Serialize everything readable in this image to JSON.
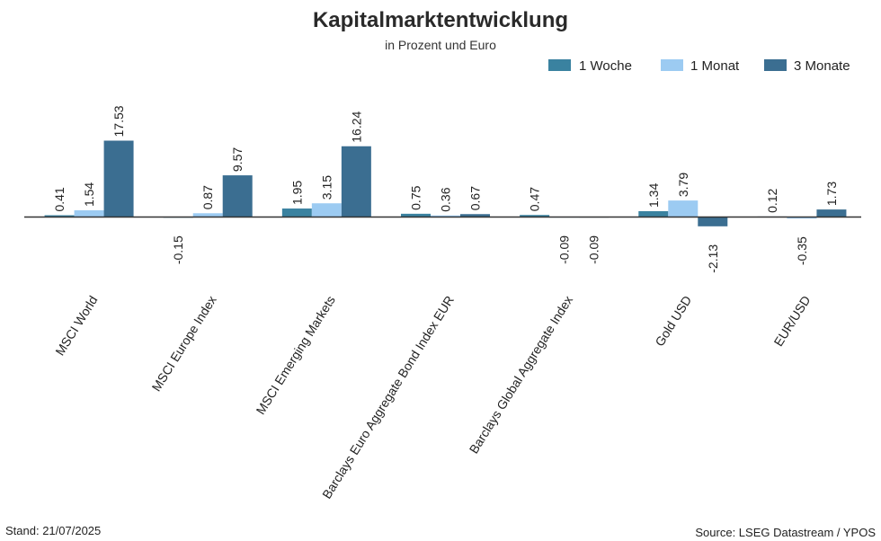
{
  "chart_data": {
    "type": "bar",
    "title": "Kapitalmarktentwicklung",
    "subtitle": "in Prozent und Euro",
    "categories": [
      "MSCI World",
      "MSCI Europe Index",
      "MSCI Emerging Markets",
      "Barclays Euro Aggregate Bond Index EUR",
      "Barclays Global Aggregate Index",
      "Gold USD",
      "EUR/USD"
    ],
    "series": [
      {
        "name": "1 Woche",
        "color": "#3a82a0",
        "values": [
          0.41,
          -0.15,
          1.95,
          0.75,
          0.47,
          1.34,
          0.12
        ],
        "labels": [
          "0.41",
          "-0.15",
          "1.95",
          "0.75",
          "0.47",
          "1.34",
          "0.12"
        ]
      },
      {
        "name": "1 Monat",
        "color": "#9ccbf2",
        "values": [
          1.54,
          0.87,
          3.15,
          0.36,
          -0.09,
          3.79,
          -0.35
        ],
        "labels": [
          "1.54",
          "0.87",
          "3.15",
          "0.36",
          "-0.09",
          "3.79",
          "-0.35"
        ]
      },
      {
        "name": "3 Monate",
        "color": "#3b6e91",
        "values": [
          17.53,
          9.57,
          16.24,
          0.67,
          -0.09,
          -2.13,
          1.73
        ],
        "labels": [
          "17.53",
          "9.57",
          "16.24",
          "0.67",
          "-0.09",
          "-2.13",
          "1.73"
        ]
      }
    ],
    "ylim": [
      -2.5,
      20
    ],
    "xlabel": "",
    "ylabel": "",
    "grid": false,
    "legend_position": "top-right",
    "baseline_color": "#333333"
  },
  "footer": {
    "left": "Stand: 21/07/2025",
    "right": "Source: LSEG Datastream / YPOS"
  }
}
